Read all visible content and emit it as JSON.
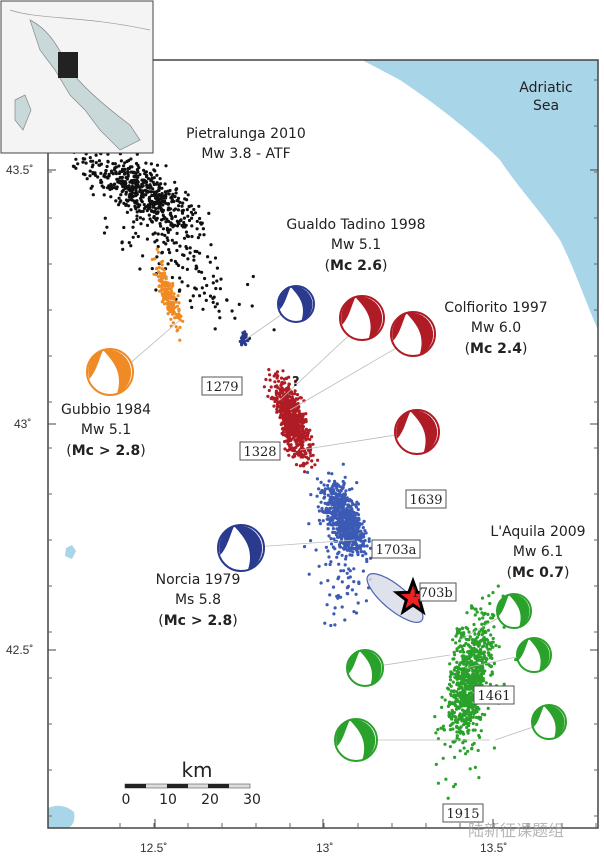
{
  "map": {
    "sea_label": [
      "Adriatic",
      "Sea"
    ],
    "colors": {
      "sea": "#a9d5e8",
      "black_cluster": "#111111",
      "orange": "#f08a24",
      "dark_blue": "#2a3a8f",
      "red": "#b01c25",
      "blue": "#3c5bb5",
      "green": "#2aa12a",
      "star": "#ee2222"
    },
    "lat_ticks": [
      "43.5˚",
      "43˚",
      "42.5˚"
    ],
    "lon_ticks": [
      "12.5˚",
      "13˚",
      "13.5˚"
    ],
    "events": [
      {
        "name": "Pietralunga 2010",
        "mag": "Mw 3.8 - ATF",
        "mc": ""
      },
      {
        "name": "Gualdo Tadino 1998",
        "mag": "Mw 5.1",
        "mc_prefix": "(",
        "mc_bold": "Mc 2.6",
        "mc_suffix": ")"
      },
      {
        "name": "Colfiorito 1997",
        "mag": "Mw 6.0",
        "mc_prefix": "(",
        "mc_bold": "Mc 2.4",
        "mc_suffix": ")"
      },
      {
        "name": "Gubbio 1984",
        "mag": "Mw 5.1",
        "mc_prefix": "(",
        "mc_bold": "Mc > 2.8",
        "mc_suffix": ")"
      },
      {
        "name": "L'Aquila 2009",
        "mag": "Mw 6.1",
        "mc_prefix": "(",
        "mc_bold": "Mc 0.7",
        "mc_suffix": ")"
      },
      {
        "name": "Norcia 1979",
        "mag": "Ms 5.8",
        "mc_prefix": "(",
        "mc_bold": "Mc > 2.8",
        "mc_suffix": ")"
      }
    ],
    "historic_boxes": [
      "1279",
      "1328",
      "1639",
      "1703a",
      "1703b",
      "1461",
      "1915"
    ],
    "question_mark": "?",
    "scale_bar": {
      "unit": "km",
      "ticks": [
        "0",
        "10",
        "20",
        "30"
      ]
    },
    "watermark": "陆新征课题组"
  }
}
